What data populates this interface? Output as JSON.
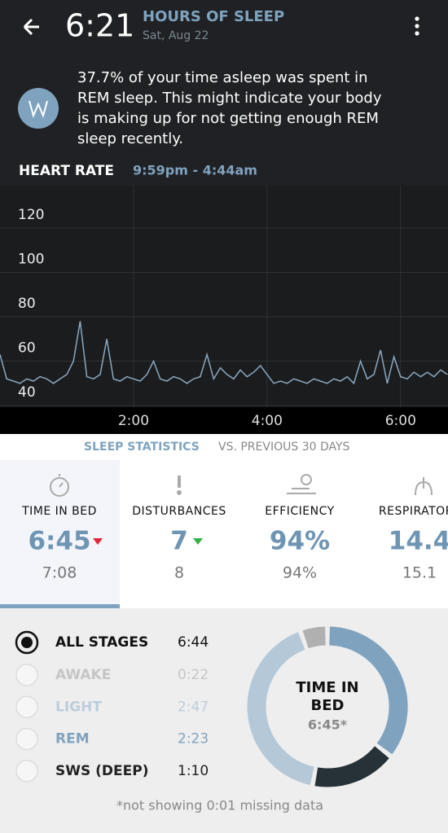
{
  "header": {
    "time": "6:21",
    "title": "HOURS OF SLEEP",
    "date": "Sat, Aug 22"
  },
  "insight_lines": [
    "37.7% of your time asleep was spent in",
    "REM sleep. This might indicate your body",
    "is making up for not getting enough REM",
    "sleep recently."
  ],
  "heart_rate": {
    "label": "HEART RATE",
    "range": "9:59pm - 4:44am"
  },
  "chart_data": {
    "type": "line",
    "x": [
      0.0,
      0.1,
      0.2,
      0.3,
      0.4,
      0.5,
      0.6,
      0.7,
      0.8,
      0.9,
      1.0,
      1.1,
      1.2,
      1.3,
      1.4,
      1.5,
      1.6,
      1.7,
      1.8,
      1.9,
      2.0,
      2.1,
      2.2,
      2.3,
      2.4,
      2.5,
      2.6,
      2.7,
      2.8,
      2.9,
      3.0,
      3.1,
      3.2,
      3.3,
      3.4,
      3.5,
      3.6,
      3.7,
      3.8,
      3.9,
      4.0,
      4.1,
      4.2,
      4.3,
      4.4,
      4.5,
      4.6,
      4.7,
      4.8,
      4.9,
      5.0,
      5.1,
      5.2,
      5.3,
      5.4,
      5.5,
      5.6,
      5.7,
      5.8,
      5.9,
      6.0,
      6.1,
      6.2,
      6.3,
      6.4,
      6.5,
      6.6,
      6.7
    ],
    "series": [
      {
        "color": "#8aa9c1",
        "values": [
          63,
          52,
          51,
          50,
          52,
          51,
          53,
          52,
          50,
          52,
          54,
          60,
          78,
          53,
          52,
          54,
          70,
          52,
          51,
          53,
          52,
          51,
          54,
          60,
          52,
          51,
          53,
          52,
          50,
          52,
          53,
          63,
          52,
          57,
          54,
          52,
          56,
          53,
          55,
          58,
          54,
          50,
          51,
          50,
          52,
          51,
          50,
          52,
          51,
          50,
          52,
          51,
          53,
          50,
          60,
          52,
          54,
          65,
          50,
          62,
          53,
          52,
          55,
          53,
          55,
          53,
          56,
          54
        ]
      }
    ],
    "xlim": [
      0,
      6.71
    ],
    "xticks": [
      {
        "value": 2,
        "label": "2:00"
      },
      {
        "value": 4,
        "label": "4:00"
      },
      {
        "value": 6,
        "label": "6:00"
      }
    ],
    "ylim": [
      40,
      138
    ],
    "yticks": [
      40,
      60,
      80,
      100,
      120
    ],
    "grid": true
  },
  "stats": {
    "heading": "SLEEP STATISTICS",
    "subheading": "VS. PREVIOUS 30 DAYS",
    "cards": [
      {
        "label": "TIME IN BED",
        "value": "6:45",
        "previous": "7:08"
      },
      {
        "label": "DISTURBANCES",
        "value": "7",
        "previous": "8"
      },
      {
        "label": "EFFICIENCY",
        "value": "94%",
        "previous": "94%"
      },
      {
        "label": "RESPIRATORY",
        "value": "14.4",
        "previous": "15.1"
      }
    ]
  },
  "all_stages": {
    "name": "ALL STAGES",
    "time": "6:44"
  },
  "stages": [
    {
      "name": "AWAKE",
      "time": "0:22",
      "minutes": 22,
      "color": "#b0b0b0",
      "text_color": "#c6c6c6"
    },
    {
      "name": "LIGHT",
      "time": "2:47",
      "minutes": 167,
      "color": "#b5c8d7",
      "text_color": "#bccddb"
    },
    {
      "name": "REM",
      "time": "2:23",
      "minutes": 143,
      "color": "#7fa3bf",
      "text_color": "#7fa3bf"
    },
    {
      "name": "SWS (DEEP)",
      "time": "1:10",
      "minutes": 70,
      "color": "#263238",
      "text_color": "#222222"
    }
  ],
  "donut_order": [
    2,
    3,
    1,
    0
  ],
  "donut_center": {
    "title_lines": [
      "TIME IN",
      "BED"
    ],
    "value": "6:45*"
  },
  "footnote": "*not showing 0:01 missing data"
}
